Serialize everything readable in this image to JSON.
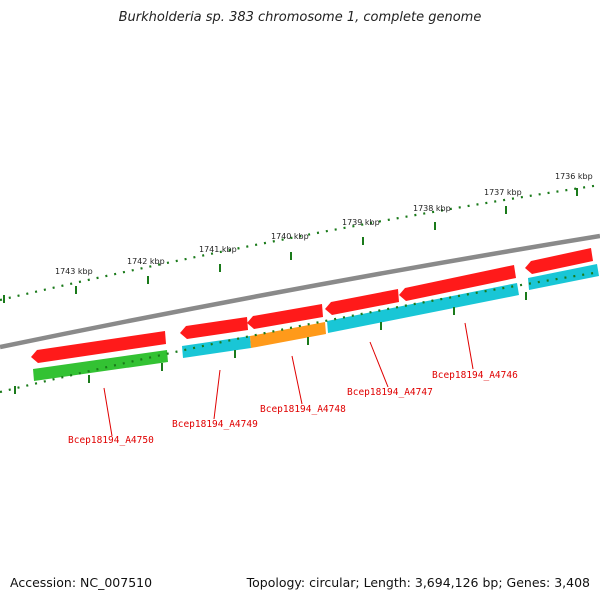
{
  "title": "Burkholderia sp. 383 chromosome 1, complete genome",
  "footer": {
    "accession": "Accession: NC_007510",
    "topology": "Topology: circular; Length: 3,694,126 bp; Genes: 3,408"
  },
  "ruler_labels": [
    "1743 kbp",
    "1742 kbp",
    "1741 kbp",
    "1740 kbp",
    "1739 kbp",
    "1738 kbp",
    "1737 kbp",
    "1736 kbp"
  ],
  "gene_labels": [
    "Bcep18194_A4750",
    "Bcep18194_A4749",
    "Bcep18194_A4748",
    "Bcep18194_A4747",
    "Bcep18194_A4746"
  ],
  "colors": {
    "backbone": "#8a8a8a",
    "ruler": "#1a7a1a",
    "cds": "#ff1a1a",
    "gene_cyan": "#19c6d6",
    "gene_orange": "#ff9a1a",
    "gene_green": "#33c233",
    "label": "#e00000"
  }
}
